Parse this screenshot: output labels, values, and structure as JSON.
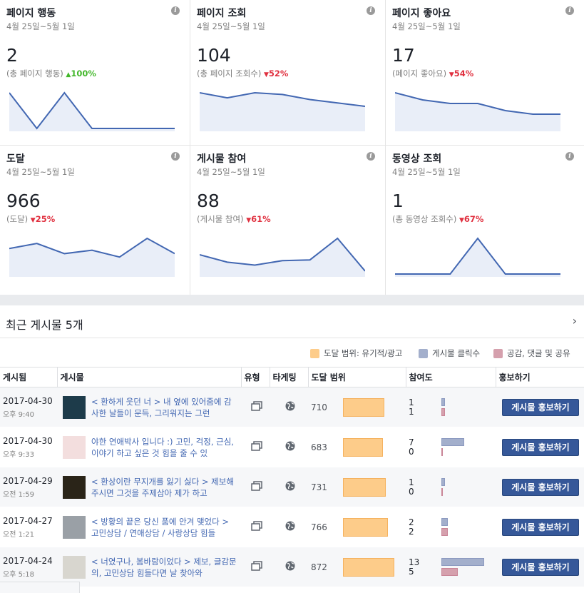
{
  "colors": {
    "accent": "#4267b2",
    "button": "#365899",
    "up": "#42b72a",
    "down": "#e0303f",
    "reach": "#fdcc8a",
    "click": "#a3afcc",
    "like": "#d5a0ad",
    "spark_line": "#4267b2",
    "spark_fill": "#e9eef8"
  },
  "cards": [
    {
      "title": "페이지 행동",
      "range": "4월 25일~5월 1일",
      "value": "2",
      "sub": "(총 페이지 행동)",
      "trend": "up",
      "arrow": "▲",
      "pct": "100%",
      "spark": [
        2,
        0,
        2,
        0,
        0,
        0,
        0
      ]
    },
    {
      "title": "페이지 조회",
      "range": "4월 25일~5월 1일",
      "value": "104",
      "sub": "(총 페이지 조회수)",
      "trend": "down",
      "arrow": "▼",
      "pct": "52%",
      "spark": [
        21,
        18,
        21,
        20,
        17,
        15,
        13
      ]
    },
    {
      "title": "페이지 좋아요",
      "range": "4월 25일~5월 1일",
      "value": "17",
      "sub": "(페이지 좋아요)",
      "trend": "down",
      "arrow": "▼",
      "pct": "54%",
      "spark": [
        5,
        4,
        3.5,
        3.5,
        2.5,
        2,
        2
      ]
    },
    {
      "title": "도달",
      "range": "4월 25일~5월 1일",
      "value": "966",
      "sub": "(도달)",
      "trend": "down",
      "arrow": "▼",
      "pct": "25%",
      "spark": [
        150,
        180,
        120,
        140,
        100,
        210,
        120
      ]
    },
    {
      "title": "게시물 참여",
      "range": "4월 25일~5월 1일",
      "value": "88",
      "sub": "(게시물 참여)",
      "trend": "down",
      "arrow": "▼",
      "pct": "61%",
      "spark": [
        13,
        8,
        6,
        9,
        9.5,
        24,
        2
      ]
    },
    {
      "title": "동영상 조회",
      "range": "4월 25일~5월 1일",
      "value": "1",
      "sub": "(총 동영상 조회수)",
      "trend": "down",
      "arrow": "▼",
      "pct": "67%",
      "spark": [
        0,
        0,
        0,
        1,
        0,
        0,
        0
      ]
    }
  ],
  "recent": {
    "title": "최근 게시물 5개",
    "chevron": "›"
  },
  "legend": [
    "도달 범위: 유기적/광고",
    "게시물 클릭수",
    "공감, 댓글 및 공유"
  ],
  "table": {
    "headers": [
      "게시됨",
      "게시물",
      "유형",
      "타게팅",
      "도달 범위",
      "참여도",
      "홍보하기"
    ],
    "rows": [
      {
        "date": "2017-04-30",
        "time": "오후 9:40",
        "text": "< 환하게 웃던 너 > 내 옆에 있어줌에 감사한 날들이 문득, 그리워지는 그런",
        "reach": "710",
        "reach_val": 710,
        "clicks": "1",
        "clicks_val": 1,
        "likes": "1",
        "likes_val": 1,
        "button": "게시물 홍보하기",
        "thumb": "#1d3b4a"
      },
      {
        "date": "2017-04-30",
        "time": "오후 9:33",
        "text": "야한 연애박사 입니다 :) 고민, 걱정, 근심, 이야기 하고 싶은 것 힘을 줄 수 있",
        "reach": "683",
        "reach_val": 683,
        "clicks": "7",
        "clicks_val": 7,
        "likes": "0",
        "likes_val": 0,
        "button": "게시물 홍보하기",
        "thumb": "#f3dede"
      },
      {
        "date": "2017-04-29",
        "time": "오전 1:59",
        "text": "< 환상이란 무지개를 잃기 싫다 > 제보해 주시면 그것을 주제삼아 제가 하고",
        "reach": "731",
        "reach_val": 731,
        "clicks": "1",
        "clicks_val": 1,
        "likes": "0",
        "likes_val": 0,
        "button": "게시물 홍보하기",
        "thumb": "#2a2418"
      },
      {
        "date": "2017-04-27",
        "time": "오전 1:21",
        "text": "< 방황의 끝은 당신 품에 안겨 맺었다 > 고민상담 / 연애상담 / 사랑상담 힘들",
        "reach": "766",
        "reach_val": 766,
        "clicks": "2",
        "clicks_val": 2,
        "likes": "2",
        "likes_val": 2,
        "button": "게시물 홍보하기",
        "thumb": "#9aa0a6"
      },
      {
        "date": "2017-04-24",
        "time": "오후 5:18",
        "text": "< 너였구나, 봄바람이었다 > 제보, 글감문의, 고민상담 힘들다면 날 찾아와",
        "reach": "872",
        "reach_val": 872,
        "clicks": "13",
        "clicks_val": 13,
        "likes": "5",
        "likes_val": 5,
        "button": "게시물 홍보하기",
        "thumb": "#d8d6cf"
      }
    ]
  }
}
